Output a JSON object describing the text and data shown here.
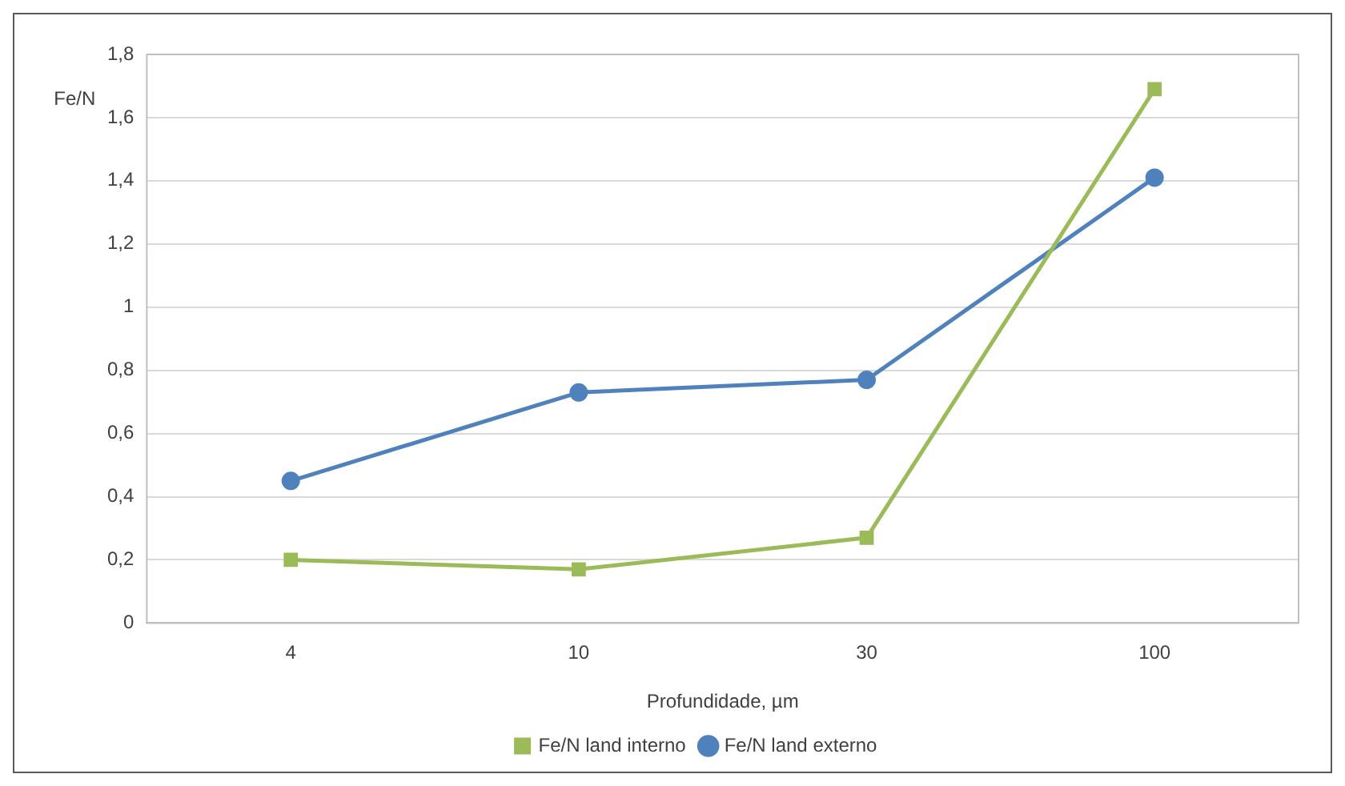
{
  "chart_data": {
    "type": "line",
    "xlabel": "Profundidade, µm",
    "ylabel": "Fe/N",
    "categories": [
      "4",
      "10",
      "30",
      "100"
    ],
    "series": [
      {
        "name": "Fe/N land interno",
        "color": "#9bbb59",
        "marker": "square",
        "values": [
          0.2,
          0.17,
          0.27,
          1.69
        ]
      },
      {
        "name": "Fe/N land externo",
        "color": "#4f81bd",
        "marker": "circle",
        "values": [
          0.45,
          0.73,
          0.77,
          1.41
        ]
      }
    ],
    "ylim": [
      0,
      1.8
    ],
    "yticks": [
      {
        "value": 0,
        "label": "0"
      },
      {
        "value": 0.2,
        "label": "0,2"
      },
      {
        "value": 0.4,
        "label": "0,4"
      },
      {
        "value": 0.6,
        "label": "0,6"
      },
      {
        "value": 0.8,
        "label": "0,8"
      },
      {
        "value": 1,
        "label": "1"
      },
      {
        "value": 1.2,
        "label": "1,2"
      },
      {
        "value": 1.4,
        "label": "1,4"
      },
      {
        "value": 1.6,
        "label": "1,6"
      },
      {
        "value": 1.8,
        "label": "1,8"
      }
    ],
    "grid": "y",
    "legend": "bottom",
    "line_style": "solid"
  }
}
